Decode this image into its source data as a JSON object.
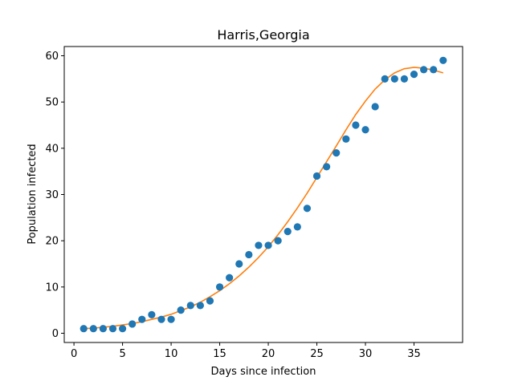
{
  "chart_data": {
    "type": "scatter",
    "title": "Harris,Georgia",
    "xlabel": "Days since infection",
    "ylabel": "Population infected",
    "xlim": [
      -1,
      40
    ],
    "ylim": [
      -2,
      62
    ],
    "xticks": [
      0,
      5,
      10,
      15,
      20,
      25,
      30,
      35
    ],
    "yticks": [
      0,
      10,
      20,
      30,
      40,
      50,
      60
    ],
    "grid": false,
    "series": [
      {
        "kind": "scatter",
        "color": "#1f77b4",
        "x": [
          1,
          2,
          3,
          4,
          5,
          6,
          7,
          8,
          9,
          10,
          11,
          12,
          13,
          14,
          15,
          16,
          17,
          18,
          19,
          20,
          21,
          22,
          23,
          24,
          25,
          26,
          27,
          28,
          29,
          30,
          31,
          32,
          33,
          34,
          35,
          36,
          37,
          38
        ],
        "y": [
          1,
          1,
          1,
          1,
          1,
          2,
          3,
          4,
          3,
          3,
          5,
          6,
          6,
          7,
          10,
          12,
          15,
          17,
          19,
          19,
          20,
          22,
          23,
          27,
          34,
          36,
          39,
          42,
          45,
          44,
          49,
          55,
          55,
          55,
          56,
          57,
          57,
          59
        ]
      },
      {
        "kind": "line",
        "color": "#ff7f0e",
        "x": [
          1,
          2,
          3,
          4,
          5,
          6,
          7,
          8,
          9,
          10,
          11,
          12,
          13,
          14,
          15,
          16,
          17,
          18,
          19,
          20,
          21,
          22,
          23,
          24,
          25,
          26,
          27,
          28,
          29,
          30,
          31,
          32,
          33,
          34,
          35,
          36,
          37,
          38
        ],
        "y": [
          1.0,
          1.1,
          1.3,
          1.5,
          1.8,
          2.1,
          2.5,
          3.0,
          3.5,
          4.1,
          4.9,
          5.7,
          6.7,
          7.9,
          9.2,
          10.7,
          12.4,
          14.3,
          16.4,
          18.7,
          21.3,
          24.1,
          27.1,
          30.3,
          33.7,
          37.1,
          40.5,
          44.0,
          47.3,
          50.2,
          52.8,
          54.8,
          56.3,
          57.2,
          57.5,
          57.3,
          56.9,
          56.3
        ]
      }
    ]
  }
}
